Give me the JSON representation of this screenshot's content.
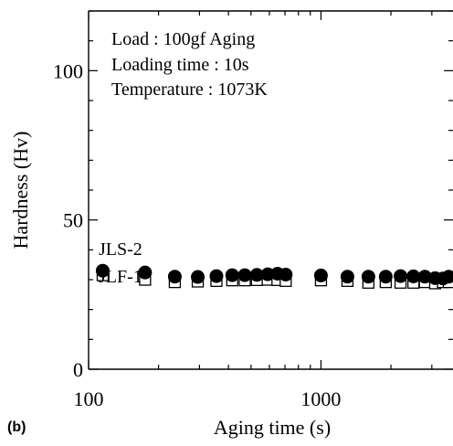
{
  "chart_data": {
    "type": "scatter",
    "panel_label": "(b)",
    "xlabel": "Aging time (s)",
    "ylabel": "Hardness (Hv)",
    "xscale": "log",
    "xlim": [
      100,
      3700
    ],
    "ylim": [
      0,
      120
    ],
    "x_ticks": [
      {
        "value": 100,
        "label": "100"
      },
      {
        "value": 1000,
        "label": "1000"
      }
    ],
    "y_ticks": [
      {
        "value": 0,
        "label": "0"
      },
      {
        "value": 50,
        "label": "50"
      },
      {
        "value": 100,
        "label": "100"
      }
    ],
    "annotations": [
      "Load : 100gf Aging",
      "Loading time : 10s",
      "Temperature : 1073K"
    ],
    "series": [
      {
        "name": "JLS-2",
        "marker": "filled-circle",
        "color": "#000000",
        "points": [
          [
            115,
            33.0
          ],
          [
            175,
            32.4
          ],
          [
            235,
            31.0
          ],
          [
            295,
            30.9
          ],
          [
            355,
            31.2
          ],
          [
            415,
            31.5
          ],
          [
            470,
            31.5
          ],
          [
            530,
            31.6
          ],
          [
            590,
            31.8
          ],
          [
            650,
            32.0
          ],
          [
            705,
            31.7
          ],
          [
            1000,
            31.4
          ],
          [
            1300,
            31.0
          ],
          [
            1600,
            31.0
          ],
          [
            1900,
            31.0
          ],
          [
            2200,
            31.2
          ],
          [
            2500,
            31.1
          ],
          [
            2800,
            31.0
          ],
          [
            3100,
            30.5
          ],
          [
            3350,
            30.4
          ],
          [
            3550,
            31.0
          ]
        ]
      },
      {
        "name": "JLF-1",
        "marker": "open-square",
        "color": "#000000",
        "points": [
          [
            115,
            31.5
          ],
          [
            175,
            30.0
          ],
          [
            235,
            29.2
          ],
          [
            295,
            29.4
          ],
          [
            355,
            29.6
          ],
          [
            415,
            29.8
          ],
          [
            470,
            29.8
          ],
          [
            530,
            29.9
          ],
          [
            590,
            30.0
          ],
          [
            650,
            29.9
          ],
          [
            705,
            29.6
          ],
          [
            1000,
            29.8
          ],
          [
            1300,
            29.6
          ],
          [
            1600,
            29.0
          ],
          [
            1900,
            29.2
          ],
          [
            2200,
            29.0
          ],
          [
            2500,
            29.0
          ],
          [
            2800,
            29.2
          ],
          [
            3100,
            28.8
          ],
          [
            3350,
            29.2
          ],
          [
            3550,
            29.2
          ]
        ]
      }
    ]
  }
}
